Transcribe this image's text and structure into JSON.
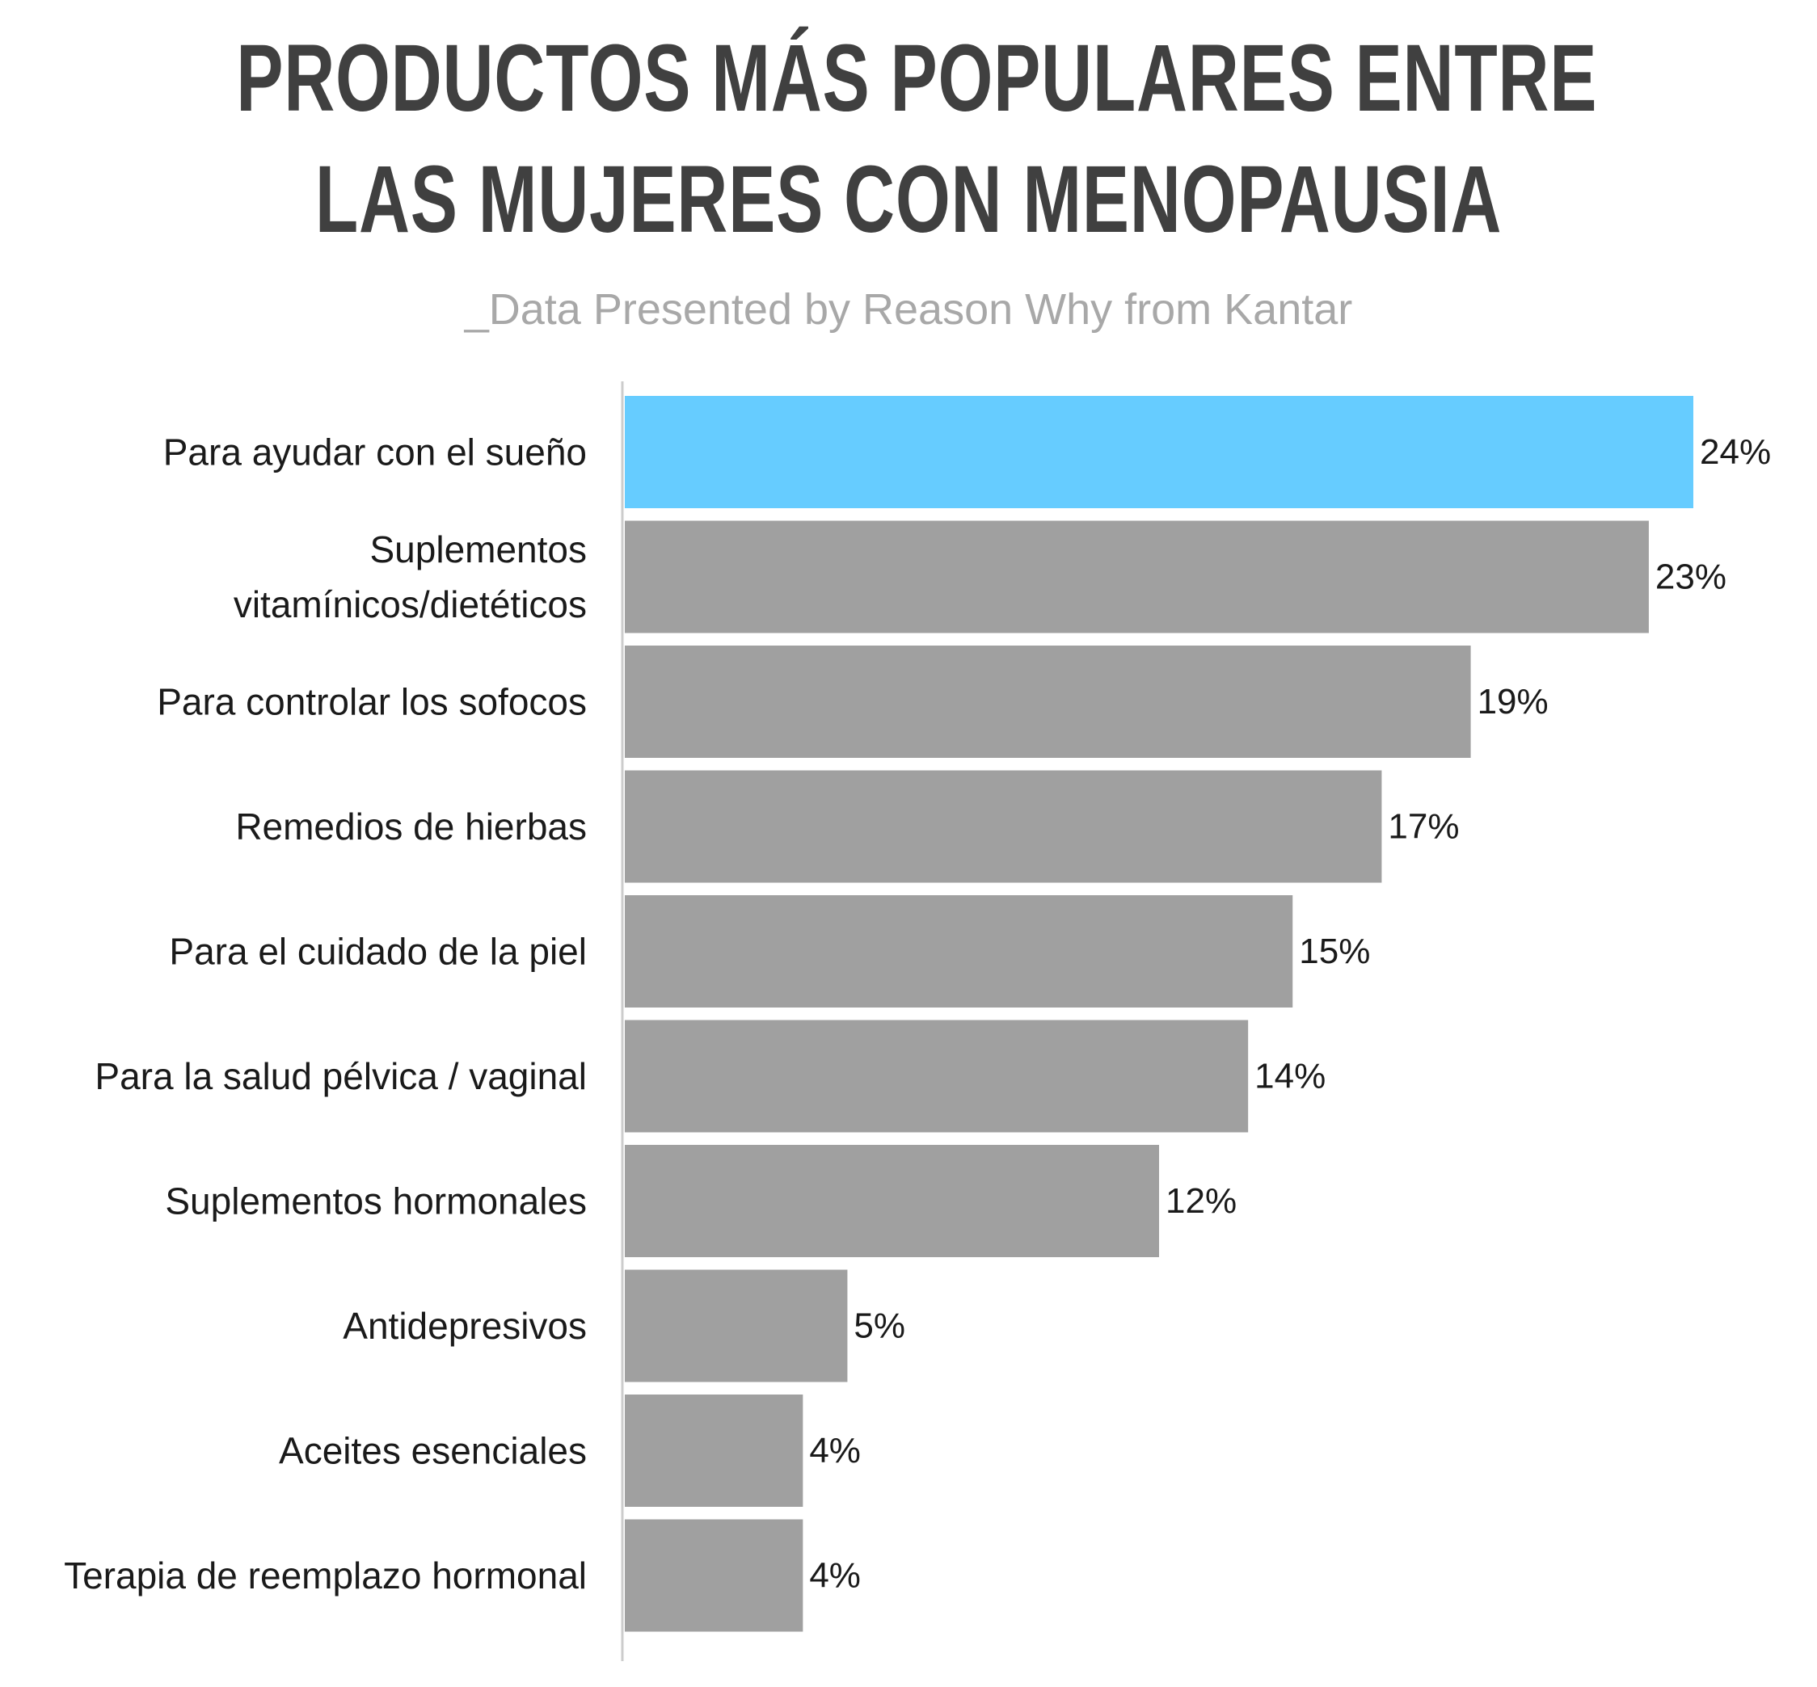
{
  "title_lines": [
    "PRODUCTOS MÁS POPULARES ENTRE",
    "LAS MUJERES CON MENOPAUSIA"
  ],
  "subtitle": "_Data Presented by Reason Why from Kantar",
  "colors": {
    "highlight": "#66ccff",
    "bar": "#a0a0a0",
    "axis": "#cccccc",
    "title": "#404040",
    "subtitle": "#a8a8a8"
  },
  "chart_data": {
    "type": "bar",
    "orientation": "horizontal",
    "title": "PRODUCTOS MÁS POPULARES ENTRE LAS MUJERES CON MENOPAUSIA",
    "subtitle": "_Data Presented by Reason Why from Kantar",
    "xlabel": "",
    "ylabel": "",
    "xlim": [
      0,
      24
    ],
    "grid": false,
    "legend": "none",
    "categories": [
      [
        "Para ayudar con el sueño"
      ],
      [
        "Suplementos",
        "vitamínicos/dietéticos"
      ],
      [
        "Para controlar los sofocos"
      ],
      [
        "Remedios de hierbas"
      ],
      [
        "Para el cuidado de la piel"
      ],
      [
        "Para la salud pélvica / vaginal"
      ],
      [
        "Suplementos hormonales"
      ],
      [
        "Antidepresivos"
      ],
      [
        "Aceites esenciales"
      ],
      [
        "Terapia de reemplazo hormonal"
      ]
    ],
    "values": [
      24,
      23,
      19,
      17,
      15,
      14,
      12,
      5,
      4,
      4
    ],
    "value_labels": [
      "24%",
      "23%",
      "19%",
      "17%",
      "15%",
      "14%",
      "12%",
      "5%",
      "4%",
      "4%"
    ],
    "highlighted_index": 0
  }
}
